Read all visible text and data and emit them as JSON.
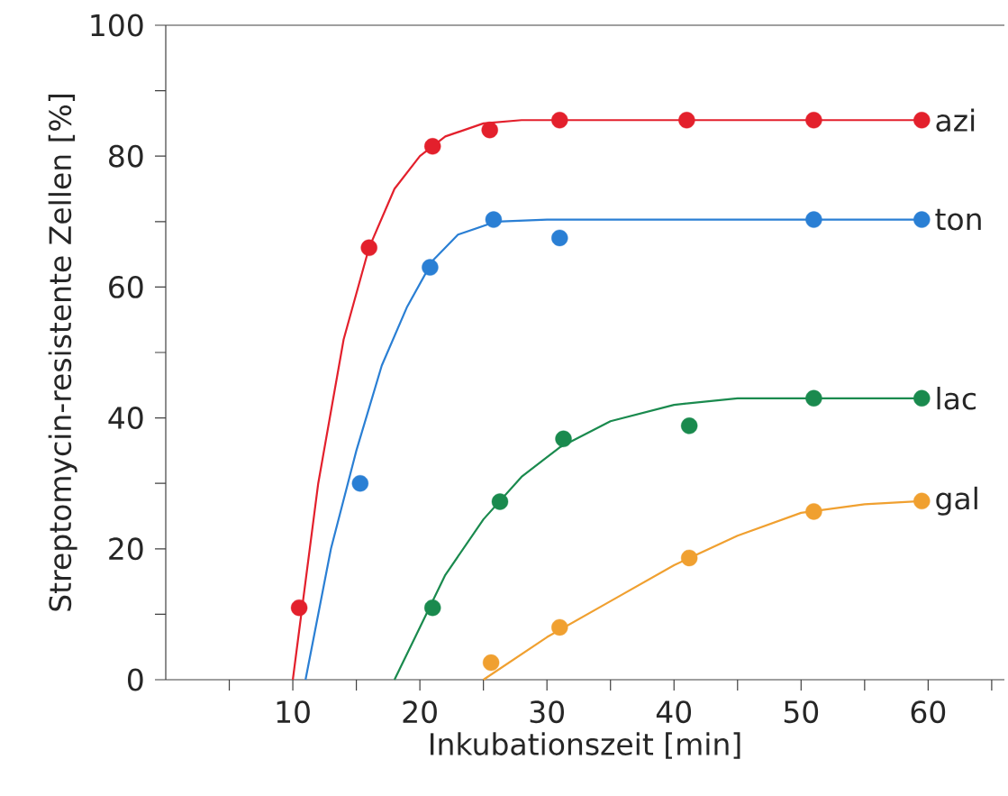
{
  "chart_data": {
    "type": "scatter",
    "xlabel": "Inkubationszeit [min]",
    "ylabel": "Streptomycin-resistente Zellen [%]",
    "xlim": [
      0,
      66
    ],
    "ylim": [
      0,
      100
    ],
    "xticks": [
      {
        "value": 5,
        "label": null
      },
      10,
      {
        "value": 15,
        "label": null
      },
      20,
      {
        "value": 25,
        "label": null
      },
      30,
      {
        "value": 35,
        "label": null
      },
      40,
      {
        "value": 45,
        "label": null
      },
      50,
      {
        "value": 55,
        "label": null
      },
      60,
      {
        "value": 65,
        "label": null
      }
    ],
    "yticks": [
      0,
      {
        "value": 10,
        "label": null
      },
      20,
      {
        "value": 30,
        "label": null
      },
      40,
      {
        "value": 50,
        "label": null
      },
      60,
      {
        "value": 70,
        "label": null
      },
      80,
      {
        "value": 90,
        "label": null
      },
      100
    ],
    "series": [
      {
        "name": "azi",
        "marker": "circle",
        "color": "#e3202c",
        "x": [
          10.5,
          16,
          21,
          25.5,
          31,
          41,
          51,
          59.5
        ],
        "values": [
          11,
          66,
          81.5,
          84,
          85.5,
          85.5,
          85.5,
          85.5
        ]
      },
      {
        "name": "ton",
        "marker": "circle",
        "color": "#2a7fd4",
        "x": [
          15.3,
          20.8,
          25.8,
          31,
          51,
          59.5
        ],
        "values": [
          30,
          63,
          70.3,
          67.5,
          70.3,
          70.3
        ]
      },
      {
        "name": "lac",
        "marker": "circle",
        "color": "#1a8a4e",
        "x": [
          21,
          26.3,
          31.3,
          41.2,
          51,
          59.5
        ],
        "values": [
          11,
          27.2,
          36.8,
          38.8,
          43,
          43
        ]
      },
      {
        "name": "gal",
        "marker": "circle",
        "color": "#f0a030",
        "x": [
          25.6,
          31,
          41.2,
          51,
          59.5
        ],
        "values": [
          2.6,
          8,
          18.6,
          25.7,
          27.3
        ]
      },
      {
        "type": "line",
        "marker": "none",
        "line_style": "solid",
        "color": "#e3202c",
        "x": [
          10,
          12,
          14,
          16,
          18,
          20,
          22,
          25,
          28,
          35,
          59.5
        ],
        "values": [
          0,
          30,
          52,
          66,
          75,
          80,
          83,
          85,
          85.5,
          85.5,
          85.5
        ]
      },
      {
        "type": "line",
        "marker": "none",
        "line_style": "solid",
        "color": "#2a7fd4",
        "x": [
          11,
          13,
          15,
          17,
          19,
          21,
          23,
          26,
          30,
          59.5
        ],
        "values": [
          0,
          20,
          35,
          48,
          57,
          64,
          68,
          70,
          70.3,
          70.3
        ]
      },
      {
        "type": "line",
        "marker": "none",
        "line_style": "solid",
        "color": "#1a8a4e",
        "x": [
          18,
          20,
          22,
          25,
          28,
          31,
          35,
          40,
          45,
          50,
          59.5
        ],
        "values": [
          0,
          8,
          16,
          24.5,
          31,
          35.5,
          39.5,
          42,
          43,
          43,
          43
        ]
      },
      {
        "type": "line",
        "marker": "none",
        "line_style": "solid",
        "color": "#f0a030",
        "x": [
          25,
          30,
          35,
          40,
          45,
          50,
          55,
          59.5
        ],
        "values": [
          0,
          6.5,
          12,
          17.5,
          22,
          25.5,
          26.8,
          27.3
        ]
      }
    ]
  }
}
